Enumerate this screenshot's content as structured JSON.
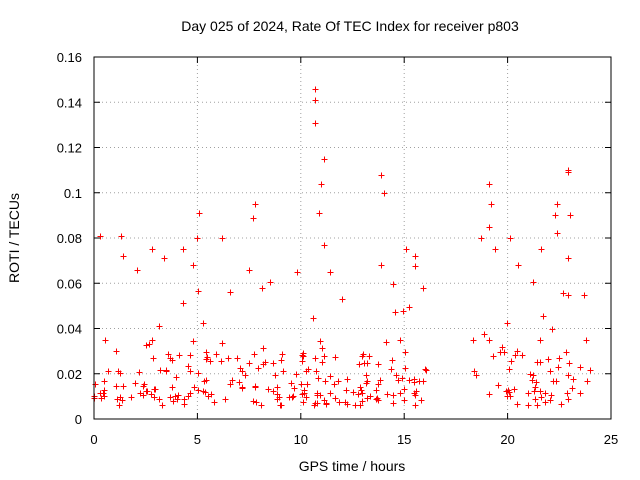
{
  "chart_data": {
    "type": "scatter",
    "title": "Day 025 of 2024, Rate Of TEC Index for receiver p803",
    "xlabel": "GPS time / hours",
    "ylabel": "ROTI / TECUs",
    "xlim": [
      0,
      25
    ],
    "ylim": [
      0,
      0.16
    ],
    "grid": true,
    "marker": "+",
    "color": "#ff0000",
    "x_ticks": [
      0,
      5,
      10,
      15,
      20,
      25
    ],
    "x_tick_labels": [
      "0",
      "5",
      "10",
      "15",
      "20",
      "25"
    ],
    "y_ticks": [
      0,
      0.02,
      0.04,
      0.06,
      0.08,
      0.1,
      0.12,
      0.14,
      0.16
    ],
    "y_tick_labels": [
      "0",
      "0.02",
      "0.04",
      "0.06",
      "0.08",
      "0.1",
      "0.12",
      "0.14",
      "0.16"
    ],
    "data_coverage_hours": [
      [
        0,
        16.1
      ],
      [
        18.1,
        24
      ]
    ],
    "series": [
      {
        "name": "ROTI",
        "points": [
          [
            0.3,
            0.081
          ],
          [
            1.3,
            0.081
          ],
          [
            1.4,
            0.072
          ],
          [
            2.1,
            0.066
          ],
          [
            2.8,
            0.075
          ],
          [
            3.4,
            0.071
          ],
          [
            4.3,
            0.075
          ],
          [
            4.8,
            0.068
          ],
          [
            5.1,
            0.091
          ],
          [
            5.0,
            0.08
          ],
          [
            6.2,
            0.08
          ],
          [
            7.5,
            0.066
          ],
          [
            7.8,
            0.095
          ],
          [
            7.7,
            0.089
          ],
          [
            8.1,
            0.058
          ],
          [
            9.8,
            0.065
          ],
          [
            10.7,
            0.146
          ],
          [
            10.7,
            0.141
          ],
          [
            10.7,
            0.131
          ],
          [
            11.1,
            0.115
          ],
          [
            11.0,
            0.104
          ],
          [
            10.9,
            0.091
          ],
          [
            11.1,
            0.077
          ],
          [
            11.4,
            0.065
          ],
          [
            12.0,
            0.053
          ],
          [
            13.9,
            0.108
          ],
          [
            14.0,
            0.1
          ],
          [
            13.9,
            0.068
          ],
          [
            15.1,
            0.075
          ],
          [
            15.5,
            0.072
          ],
          [
            15.9,
            0.058
          ],
          [
            19.1,
            0.104
          ],
          [
            19.2,
            0.095
          ],
          [
            19.1,
            0.085
          ],
          [
            18.7,
            0.08
          ],
          [
            19.4,
            0.075
          ],
          [
            20.1,
            0.08
          ],
          [
            20.5,
            0.068
          ],
          [
            21.6,
            0.075
          ],
          [
            22.4,
            0.095
          ],
          [
            22.3,
            0.09
          ],
          [
            22.4,
            0.082
          ],
          [
            22.9,
            0.11
          ],
          [
            22.9,
            0.109
          ],
          [
            23.0,
            0.09
          ],
          [
            22.9,
            0.071
          ],
          [
            23.7,
            0.055
          ]
        ]
      }
    ]
  }
}
